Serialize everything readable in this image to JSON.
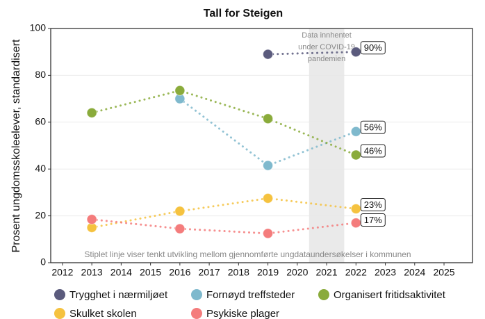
{
  "chart_data": {
    "type": "line",
    "title": "Tall for Steigen",
    "y_label": "Prosent ungdomsskoleelever, standardisert",
    "x": [
      2013,
      2016,
      2019,
      2022
    ],
    "xlim": [
      2011.6,
      2025.97
    ],
    "xticks": [
      2012,
      2013,
      2014,
      2015,
      2016,
      2017,
      2018,
      2019,
      2020,
      2021,
      2022,
      2023,
      2024,
      2025
    ],
    "ylim": [
      0,
      100
    ],
    "yticks": [
      0,
      20,
      40,
      60,
      80,
      100
    ],
    "grid": true,
    "legend": "bottom",
    "shade": [
      2020.4,
      2021.6
    ],
    "shade_note": [
      "Data innhentet",
      "under COVID-19",
      "pandemien"
    ],
    "note": "Stiplet linje viser tenkt utvikling mellom gjennomførte ungdataundersøkelser i kommunen",
    "series": [
      {
        "name": "Trygghet i nærmiljøet",
        "color": "#5b5b7d",
        "values": [
          null,
          null,
          89,
          90
        ],
        "value_labels": [
          null,
          null,
          null,
          "90%"
        ]
      },
      {
        "name": "Fornøyd treffsteder",
        "color": "#7fb9cd",
        "values": [
          null,
          70,
          41.5,
          56
        ],
        "value_labels": [
          null,
          null,
          null,
          "56%"
        ]
      },
      {
        "name": "Organisert fritidsaktivitet",
        "color": "#8aab3b",
        "values": [
          64,
          73.5,
          61.5,
          46
        ],
        "value_labels": [
          null,
          null,
          null,
          "46%"
        ]
      },
      {
        "name": "Skulket skolen",
        "color": "#f5c23f",
        "values": [
          15,
          22,
          27.5,
          23
        ],
        "value_labels": [
          null,
          null,
          null,
          "23%"
        ]
      },
      {
        "name": "Psykiske plager",
        "color": "#f47c7c",
        "values": [
          18.5,
          14.5,
          12.5,
          17
        ],
        "value_labels": [
          null,
          null,
          null,
          "17%"
        ]
      }
    ]
  }
}
